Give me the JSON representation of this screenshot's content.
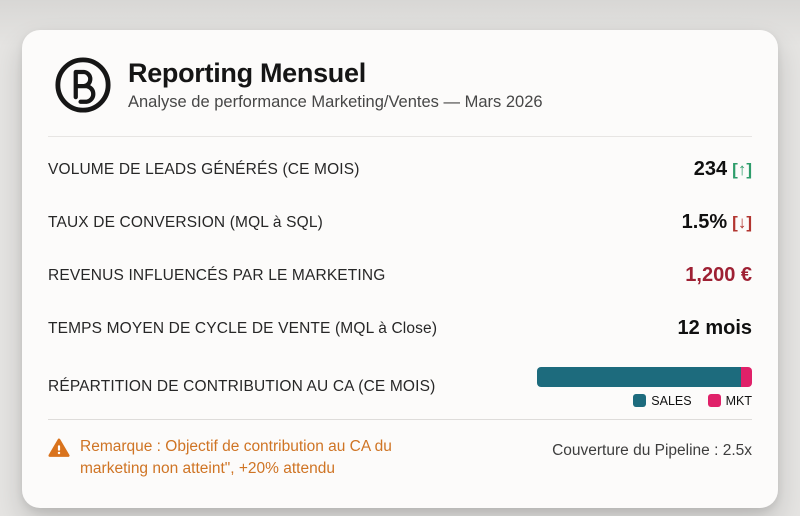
{
  "header": {
    "logo_letter": "B",
    "title": "Reporting Mensuel",
    "subtitle": "Analyse de performance Marketing/Ventes — Mars 2026"
  },
  "metrics": [
    {
      "label": "VOLUME DE LEADS GÉNÉRÉS (CE MOIS)",
      "value": "234",
      "trend_symbol": "[↑]",
      "trend": "up"
    },
    {
      "label": "TAUX DE CONVERSION (MQL à SQL)",
      "value": "1.5%",
      "trend_symbol": "[↓]",
      "trend": "down"
    },
    {
      "label": "REVENUS INFLUENCÉS PAR LE MARKETING",
      "value": "1,200 €",
      "emphasis": "negative-revenue"
    },
    {
      "label": "TEMPS MOYEN DE CYCLE DE VENTE (MQL à Close)",
      "value": "12 mois"
    },
    {
      "label": "RÉPARTITION DE CONTRIBUTION AU CA (CE MOIS)"
    }
  ],
  "chart_data": {
    "type": "bar",
    "orientation": "horizontal-stacked",
    "title": "RÉPARTITION DE CONTRIBUTION AU CA (CE MOIS)",
    "legend_position": "bottom-right",
    "segments": [
      {
        "name": "SALES",
        "percent": 95,
        "color": "#1d6b7d"
      },
      {
        "name": "MKT",
        "percent": 5,
        "color": "#e02169"
      }
    ]
  },
  "colors": {
    "trend_positive": "#2e9d6b",
    "trend_negative": "#b23530",
    "revenue_alert": "#9e2033",
    "sales_segment": "#1d6b7d",
    "mkt_segment": "#e02169",
    "warning_text": "#cf7424",
    "warning_icon": "#d9731d"
  },
  "footer": {
    "note": "Remarque : Objectif de contribution au CA du marketing non atteint\", +20% attendu",
    "pipeline": "Couverture du Pipeline : 2.5x"
  }
}
